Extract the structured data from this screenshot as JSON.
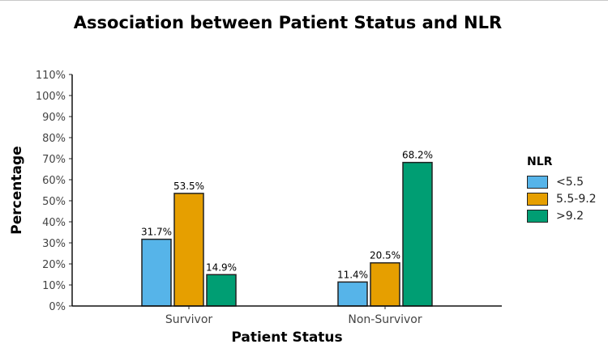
{
  "chart_data": {
    "type": "bar",
    "title": "Association between Patient Status and NLR",
    "xlabel": "Patient Status",
    "ylabel": "Percentage",
    "categories": [
      "Survivor",
      "Non-Survivor"
    ],
    "series": [
      {
        "name": "<5.5",
        "values": [
          31.7,
          11.4
        ],
        "color": "#56B4E9"
      },
      {
        "name": "5.5-9.2",
        "values": [
          53.5,
          20.5
        ],
        "color": "#E69F00"
      },
      {
        "name": ">9.2",
        "values": [
          14.9,
          68.2
        ],
        "color": "#009E73"
      }
    ],
    "ylim": [
      0,
      110
    ],
    "yticks": [
      "0%",
      "10%",
      "20%",
      "30%",
      "40%",
      "50%",
      "60%",
      "70%",
      "80%",
      "90%",
      "100%",
      "110%"
    ],
    "value_labels": [
      [
        "31.7%",
        "11.4%"
      ],
      [
        "53.5%",
        "20.5%"
      ],
      [
        "14.9%",
        "68.2%"
      ]
    ],
    "legend": {
      "title": "NLR",
      "position": "right"
    },
    "grid": false
  }
}
